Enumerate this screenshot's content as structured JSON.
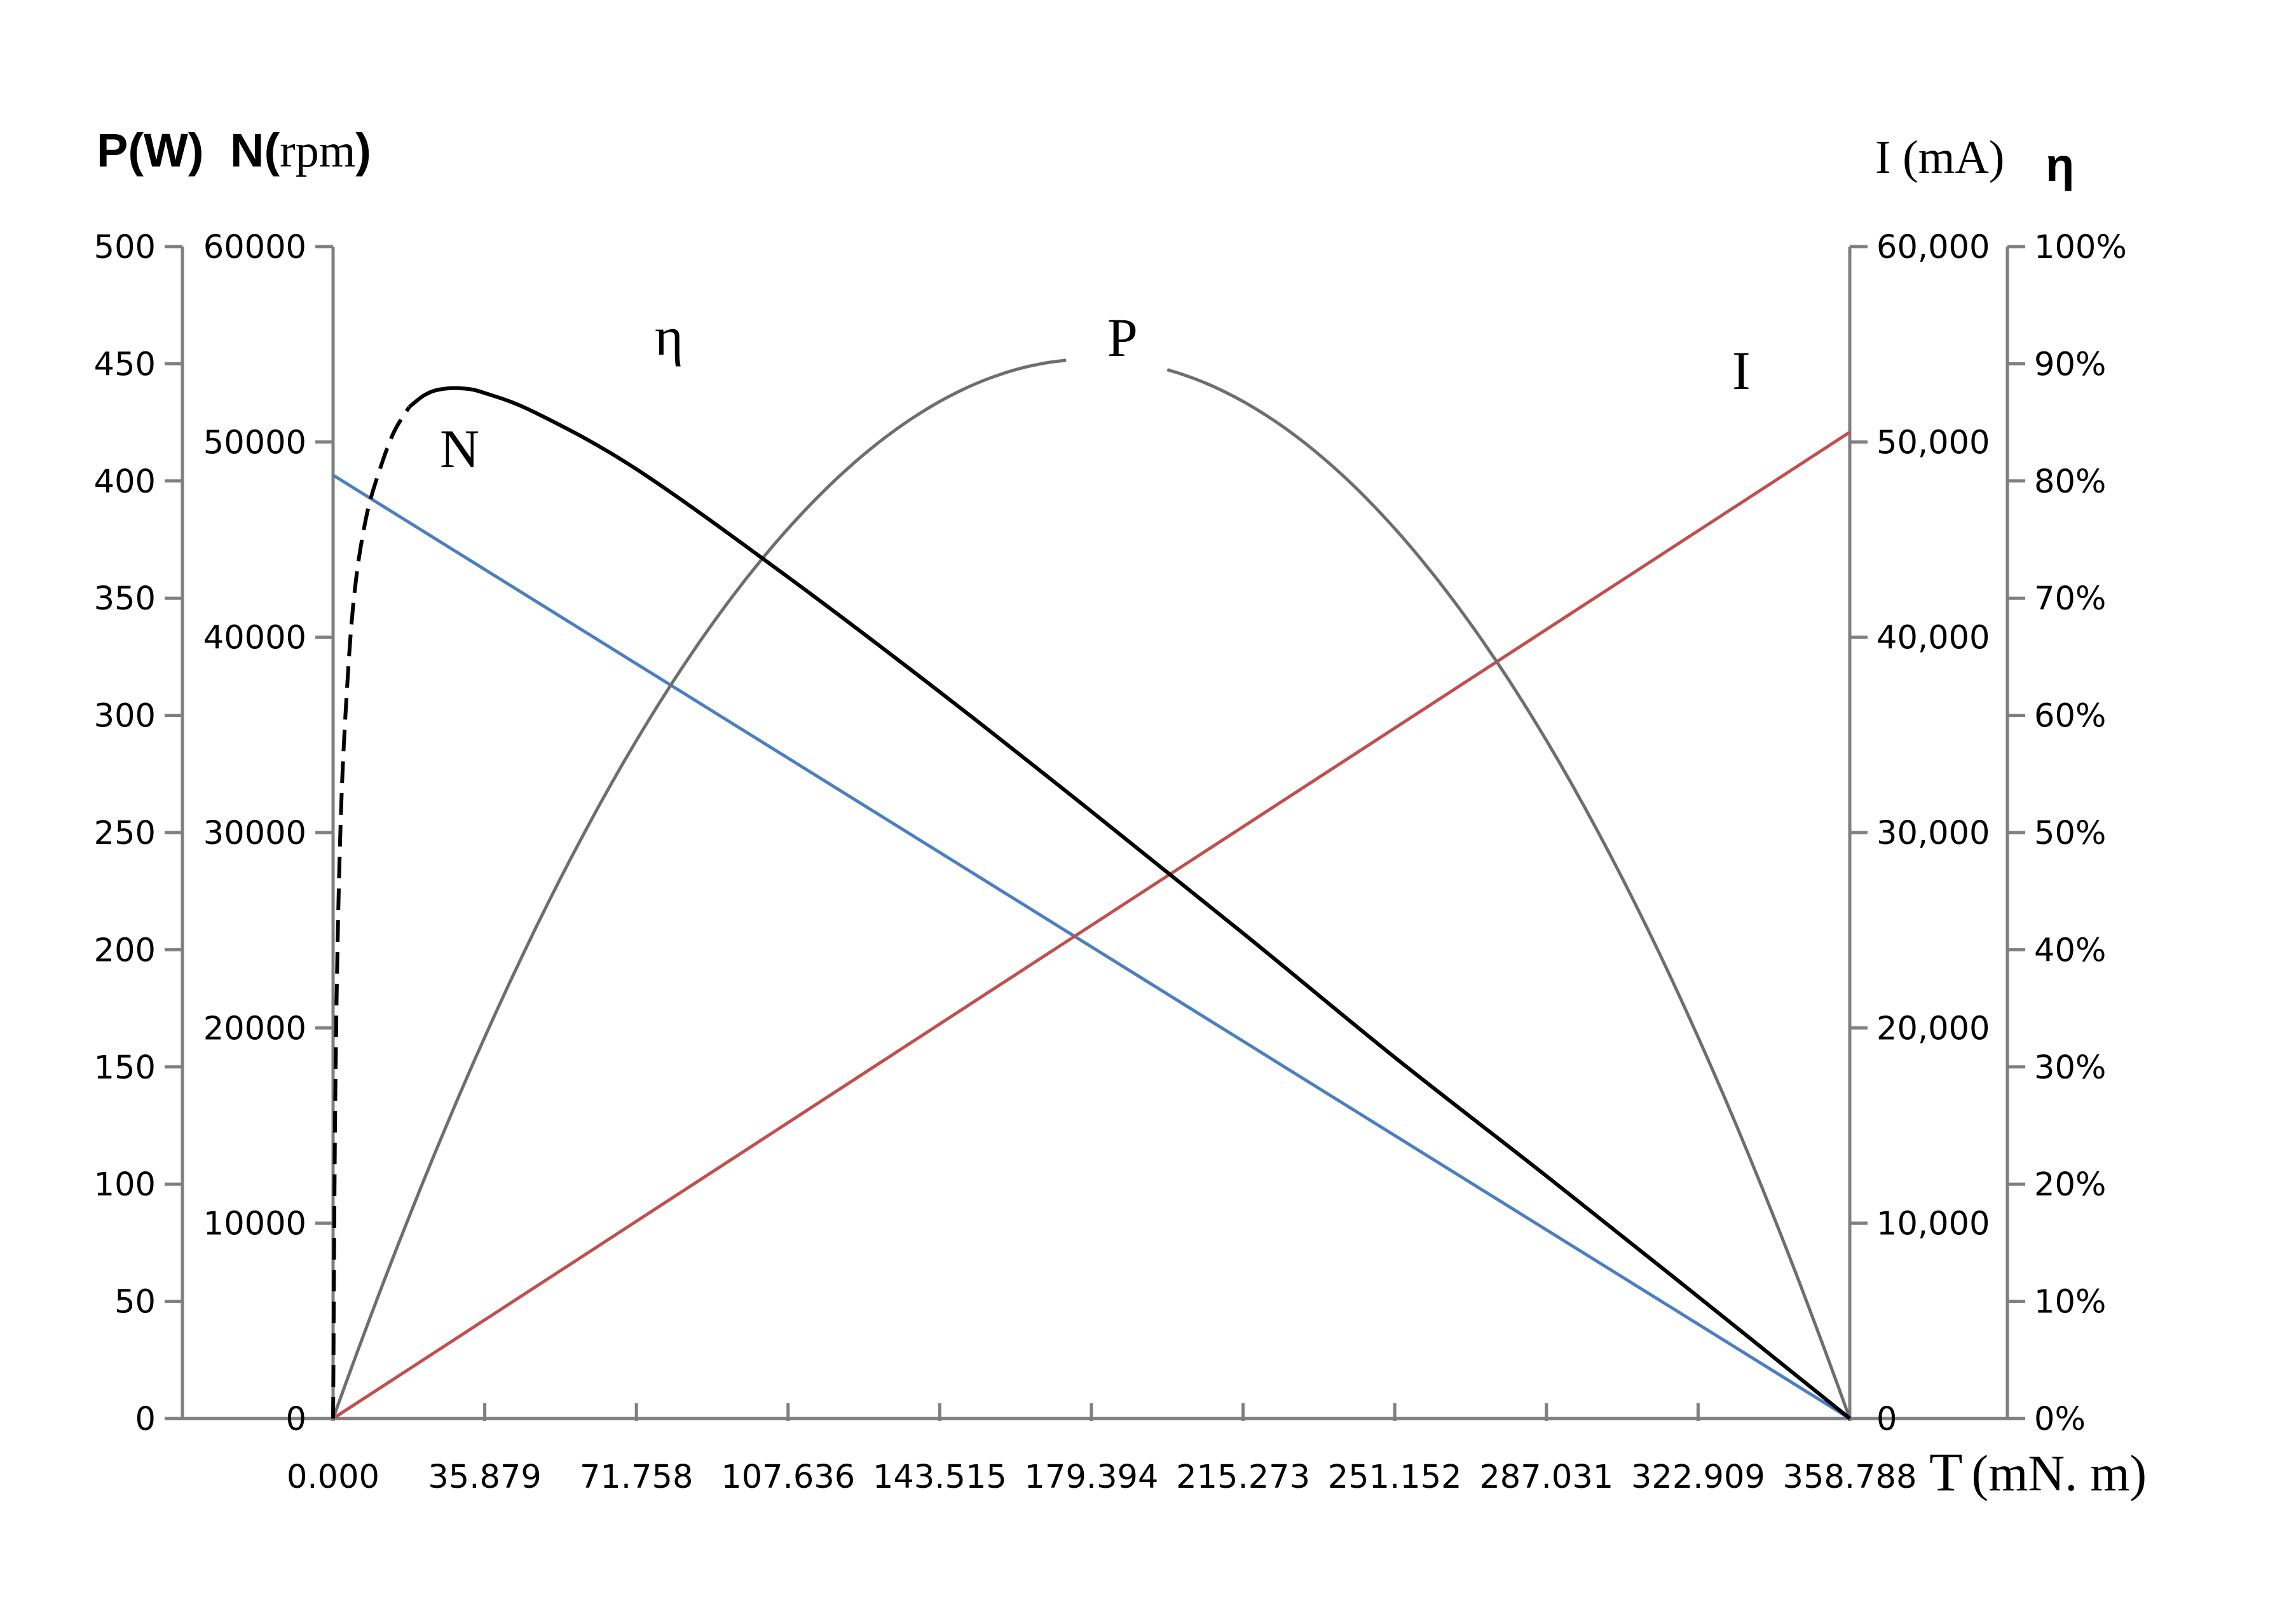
{
  "chart_data": {
    "type": "line",
    "x": [
      0,
      35.879,
      71.758,
      107.636,
      143.515,
      179.394,
      215.273,
      251.152,
      287.031,
      322.909,
      358.788
    ],
    "x_tick_labels": [
      "0.000",
      "35.879",
      "71.758",
      "107.636",
      "143.515",
      "179.394",
      "215.273",
      "251.152",
      "287.031",
      "322.909",
      "358.788"
    ],
    "xlim": [
      0,
      358.788
    ],
    "xlabel": {
      "symbol": "T",
      "unit": "(mN. m)"
    },
    "axes": {
      "power": {
        "title": "P(W)",
        "ticks": [
          "0",
          "50",
          "100",
          "150",
          "200",
          "250",
          "300",
          "350",
          "400",
          "450",
          "500"
        ],
        "range": [
          0,
          500
        ]
      },
      "speed": {
        "title_bold": "N(",
        "title_unit": "rpm",
        "title_close": ")",
        "ticks": [
          "0",
          "10000",
          "20000",
          "30000",
          "40000",
          "50000",
          "60000"
        ],
        "range": [
          0,
          60000
        ]
      },
      "current": {
        "title": "I (mA)",
        "ticks": [
          "0",
          "10,000",
          "20,000",
          "30,000",
          "40,000",
          "50,000",
          "60,000"
        ],
        "range": [
          0,
          60000
        ]
      },
      "efficiency": {
        "title": "η",
        "ticks": [
          "0%",
          "10%",
          "20%",
          "30%",
          "40%",
          "50%",
          "60%",
          "70%",
          "80%",
          "90%",
          "100%"
        ],
        "range": [
          0,
          100
        ]
      }
    },
    "series": [
      {
        "name": "N",
        "axis": "speed",
        "color": "#4a7fc1",
        "x": [
          0,
          358.788
        ],
        "values": [
          48300,
          0
        ]
      },
      {
        "name": "I",
        "axis": "current",
        "color": "#c0504d",
        "x": [
          0,
          358.788
        ],
        "values": [
          0,
          50500
        ]
      },
      {
        "name": "P",
        "axis": "power",
        "color": "#6e6e6e",
        "x": [
          0,
          35.879,
          71.758,
          107.636,
          143.515,
          179.394,
          215.273,
          251.152,
          287.031,
          322.909,
          358.788
        ],
        "values": [
          0,
          163,
          290,
          380,
          434,
          452,
          434,
          380,
          290,
          163,
          0
        ]
      },
      {
        "name": "η",
        "axis": "efficiency",
        "color": "#000000",
        "x": [
          0,
          0.6,
          1.8,
          3.6,
          5.4,
          7.9,
          10.8,
          14.3,
          18,
          21.5,
          25.1,
          30.5,
          35.9,
          48,
          71.8,
          107.6,
          143.5,
          179.4,
          215.3,
          251.2,
          287,
          322.9,
          358.8
        ],
        "values": [
          0,
          30,
          51,
          64,
          71.5,
          77,
          80.7,
          84.1,
          86.3,
          87.3,
          87.8,
          87.9,
          87.5,
          85.8,
          81,
          71.8,
          62,
          51.8,
          41.4,
          30.8,
          20.7,
          10.4,
          0
        ],
        "dashed_until_x": 18
      }
    ],
    "curve_labels": [
      "N",
      "I",
      "P",
      "η"
    ],
    "grid": false
  }
}
